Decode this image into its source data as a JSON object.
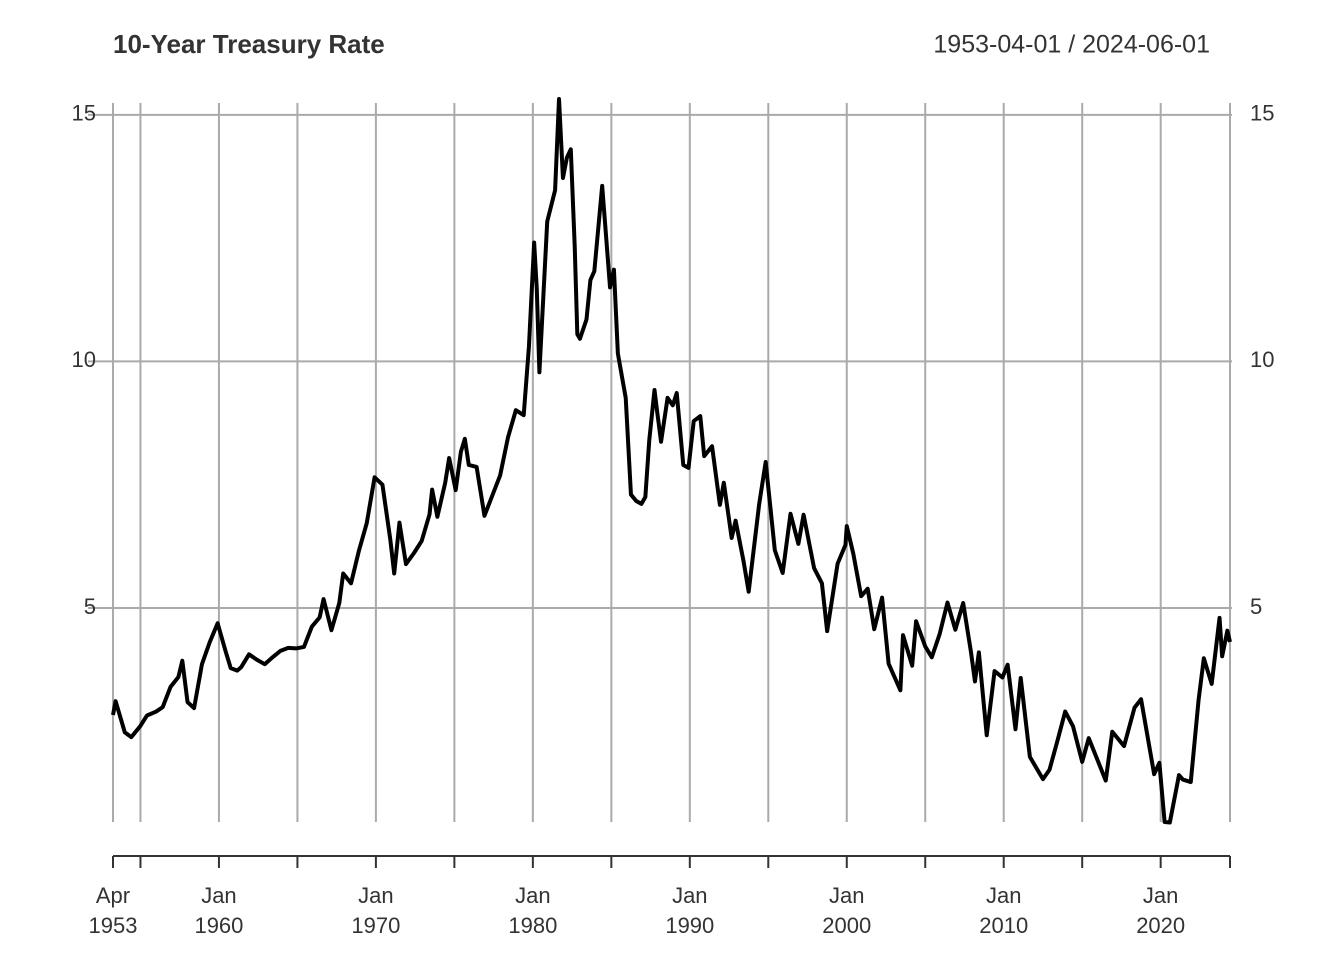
{
  "chart_data": {
    "type": "line",
    "title": "10-Year Treasury Rate",
    "subtitle": "1953-04-01 / 2024-06-01",
    "x": [
      "1953-04",
      "1953-06",
      "1954-01",
      "1954-06",
      "1955-01",
      "1955-06",
      "1956-01",
      "1956-06",
      "1956-12",
      "1957-06",
      "1957-09",
      "1958-01",
      "1958-06",
      "1958-12",
      "1959-06",
      "1959-12",
      "1960-06",
      "1960-10",
      "1961-03",
      "1961-06",
      "1961-12",
      "1962-06",
      "1962-12",
      "1963-06",
      "1963-12",
      "1964-06",
      "1964-12",
      "1965-06",
      "1965-12",
      "1966-06",
      "1966-09",
      "1967-03",
      "1967-09",
      "1967-12",
      "1968-06",
      "1968-12",
      "1969-06",
      "1969-12",
      "1970-06",
      "1970-12",
      "1971-03",
      "1971-07",
      "1971-12",
      "1972-06",
      "1972-12",
      "1973-06",
      "1973-08",
      "1973-12",
      "1974-06",
      "1974-09",
      "1975-02",
      "1975-06",
      "1975-09",
      "1975-12",
      "1976-06",
      "1976-12",
      "1977-06",
      "1977-12",
      "1978-06",
      "1978-12",
      "1979-06",
      "1979-10",
      "1980-02",
      "1980-04",
      "1980-06",
      "1980-12",
      "1981-06",
      "1981-09",
      "1981-12",
      "1982-03",
      "1982-06",
      "1982-09",
      "1982-11",
      "1983-01",
      "1983-06",
      "1983-09",
      "1983-12",
      "1984-06",
      "1984-12",
      "1985-03",
      "1985-06",
      "1985-12",
      "1986-04",
      "1986-08",
      "1986-12",
      "1987-03",
      "1987-06",
      "1987-10",
      "1987-12",
      "1988-03",
      "1988-08",
      "1988-12",
      "1989-03",
      "1989-08",
      "1989-12",
      "1990-04",
      "1990-09",
      "1990-12",
      "1991-06",
      "1991-12",
      "1992-03",
      "1992-09",
      "1992-12",
      "1993-06",
      "1993-10",
      "1994-06",
      "1994-11",
      "1995-06",
      "1995-12",
      "1996-06",
      "1996-12",
      "1997-04",
      "1997-12",
      "1998-06",
      "1998-10",
      "1999-06",
      "1999-12",
      "2000-01",
      "2000-06",
      "2000-12",
      "2001-05",
      "2001-10",
      "2002-04",
      "2002-09",
      "2003-06",
      "2003-08",
      "2004-03",
      "2004-06",
      "2005-01",
      "2005-06",
      "2005-12",
      "2006-06",
      "2006-12",
      "2007-06",
      "2007-12",
      "2008-03",
      "2008-06",
      "2008-12",
      "2009-06",
      "2009-12",
      "2010-04",
      "2010-10",
      "2011-02",
      "2011-09",
      "2012-07",
      "2012-12",
      "2013-06",
      "2013-12",
      "2014-06",
      "2015-01",
      "2015-06",
      "2016-07",
      "2016-12",
      "2017-09",
      "2018-05",
      "2018-10",
      "2019-08",
      "2019-12",
      "2020-04",
      "2020-08",
      "2021-03",
      "2021-06",
      "2021-12",
      "2022-06",
      "2022-10",
      "2023-04",
      "2023-10",
      "2023-12",
      "2024-04",
      "2024-06"
    ],
    "series": [
      {
        "color": "#000000",
        "values": [
          2.83,
          3.11,
          2.48,
          2.38,
          2.61,
          2.82,
          2.9,
          2.99,
          3.4,
          3.6,
          3.93,
          3.09,
          2.97,
          3.86,
          4.31,
          4.69,
          4.13,
          3.78,
          3.73,
          3.8,
          4.06,
          3.95,
          3.86,
          4.0,
          4.13,
          4.19,
          4.18,
          4.21,
          4.62,
          4.81,
          5.18,
          4.55,
          5.1,
          5.7,
          5.5,
          6.16,
          6.72,
          7.65,
          7.5,
          6.39,
          5.7,
          6.73,
          5.89,
          6.11,
          6.36,
          6.9,
          7.4,
          6.85,
          7.54,
          8.04,
          7.39,
          8.17,
          8.43,
          7.9,
          7.86,
          6.87,
          7.28,
          7.69,
          8.46,
          9.01,
          8.91,
          10.3,
          12.41,
          11.47,
          9.78,
          12.84,
          13.47,
          15.32,
          13.72,
          14.13,
          14.3,
          12.34,
          10.55,
          10.46,
          10.85,
          11.65,
          11.83,
          13.56,
          11.5,
          11.86,
          10.16,
          9.26,
          7.3,
          7.17,
          7.11,
          7.25,
          8.4,
          9.42,
          8.99,
          8.37,
          9.26,
          9.11,
          9.36,
          7.9,
          7.84,
          8.79,
          8.89,
          8.08,
          8.28,
          7.09,
          7.54,
          6.42,
          6.77,
          5.96,
          5.33,
          7.1,
          7.96,
          6.17,
          5.71,
          6.91,
          6.3,
          6.89,
          5.81,
          5.5,
          4.53,
          5.9,
          6.28,
          6.66,
          6.1,
          5.24,
          5.39,
          4.57,
          5.21,
          3.87,
          3.33,
          4.45,
          3.83,
          4.73,
          4.22,
          4.0,
          4.47,
          5.11,
          4.56,
          5.1,
          4.1,
          3.51,
          4.1,
          2.42,
          3.72,
          3.59,
          3.85,
          2.54,
          3.58,
          1.98,
          1.53,
          1.72,
          2.3,
          2.9,
          2.6,
          1.88,
          2.36,
          1.5,
          2.49,
          2.2,
          2.98,
          3.15,
          1.63,
          1.86,
          0.66,
          0.65,
          1.61,
          1.52,
          1.47,
          3.14,
          3.98,
          3.46,
          4.8,
          4.02,
          4.54,
          4.31
        ]
      }
    ],
    "xlim": [
      "1953-04",
      "2024-06"
    ],
    "xticks": [
      {
        "value": "1953-04",
        "label": [
          "Apr",
          "1953"
        ]
      },
      {
        "value": "1955-01",
        "label": null
      },
      {
        "value": "1960-01",
        "label": [
          "Jan",
          "1960"
        ]
      },
      {
        "value": "1965-01",
        "label": null
      },
      {
        "value": "1970-01",
        "label": [
          "Jan",
          "1970"
        ]
      },
      {
        "value": "1975-01",
        "label": null
      },
      {
        "value": "1980-01",
        "label": [
          "Jan",
          "1980"
        ]
      },
      {
        "value": "1985-01",
        "label": null
      },
      {
        "value": "1990-01",
        "label": [
          "Jan",
          "1990"
        ]
      },
      {
        "value": "1995-01",
        "label": null
      },
      {
        "value": "2000-01",
        "label": [
          "Jan",
          "2000"
        ]
      },
      {
        "value": "2005-01",
        "label": null
      },
      {
        "value": "2010-01",
        "label": [
          "Jan",
          "2010"
        ]
      },
      {
        "value": "2015-01",
        "label": null
      },
      {
        "value": "2020-01",
        "label": [
          "Jan",
          "2020"
        ]
      },
      {
        "value": "2024-06",
        "label": null
      }
    ],
    "ylim": [
      0.66,
      15.24
    ],
    "yticks": [
      5,
      10,
      15
    ],
    "grid": true
  }
}
